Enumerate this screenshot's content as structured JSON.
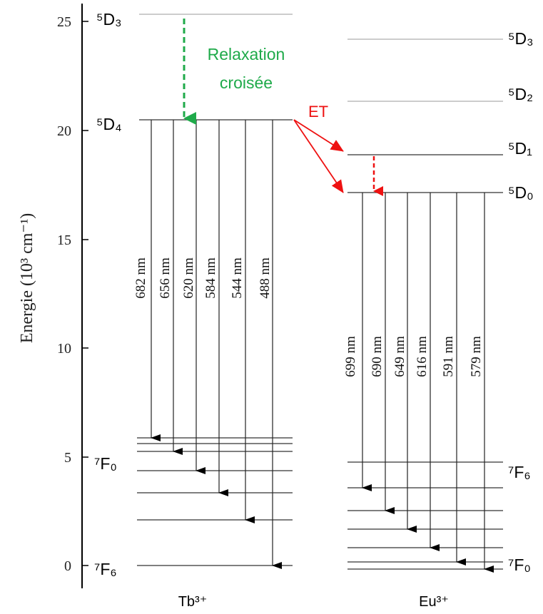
{
  "axis": {
    "title": "Energie (10³ cm⁻¹)",
    "ticks": [
      "0",
      "5",
      "10",
      "15",
      "20",
      "25"
    ]
  },
  "ions": {
    "tb": "Tb³⁺",
    "eu": "Eu³⁺"
  },
  "levels": {
    "tb_5d3": "⁵D₃",
    "tb_5d4": "⁵D₄",
    "tb_7f0": "⁷F₀",
    "tb_7f6": "⁷F₆",
    "eu_5d3": "⁵D₃",
    "eu_5d2": "⁵D₂",
    "eu_5d1": "⁵D₁",
    "eu_5d0": "⁵D₀",
    "eu_7f6": "⁷F₆",
    "eu_7f0": "⁷F₀"
  },
  "annotations": {
    "relaxation_line1": "Relaxation",
    "relaxation_line2": "croisée",
    "et": "ET"
  },
  "tb_transitions": [
    "682 nm",
    "656 nm",
    "620 nm",
    "584 nm",
    "544 nm",
    "488 nm"
  ],
  "eu_transitions": [
    "699 nm",
    "690 nm",
    "649 nm",
    "616 nm",
    "591 nm",
    "579 nm"
  ],
  "colors": {
    "green": "#1faa4a",
    "red": "#ee1111",
    "level": "#555555"
  }
}
